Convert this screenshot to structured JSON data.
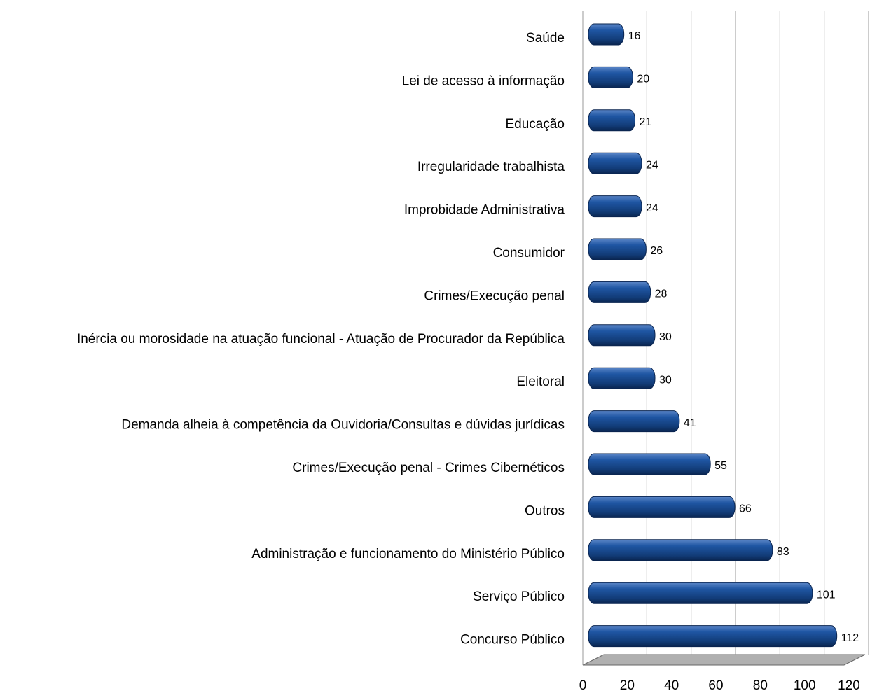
{
  "chart_data": {
    "type": "bar",
    "orientation": "horizontal",
    "categories": [
      "Saúde",
      "Lei de acesso à informação",
      "Educação",
      "Irregularidade trabalhista",
      "Improbidade Administrativa",
      "Consumidor",
      "Crimes/Execução penal",
      "Inércia ou morosidade na atuação funcional - Atuação de Procurador da República",
      "Eleitoral",
      "Demanda alheia à competência da Ouvidoria/Consultas e dúvidas jurídicas",
      "Crimes/Execução penal - Crimes Cibernéticos",
      "Outros",
      "Administração e funcionamento do Ministério Público",
      "Serviço Público",
      "Concurso Público"
    ],
    "values": [
      16,
      20,
      21,
      24,
      24,
      26,
      28,
      30,
      30,
      41,
      55,
      66,
      83,
      101,
      112
    ],
    "color": "#1c4f93",
    "xlim": [
      0,
      120
    ],
    "xticks": [
      0,
      20,
      40,
      60,
      80,
      100,
      120
    ],
    "grid": true
  }
}
